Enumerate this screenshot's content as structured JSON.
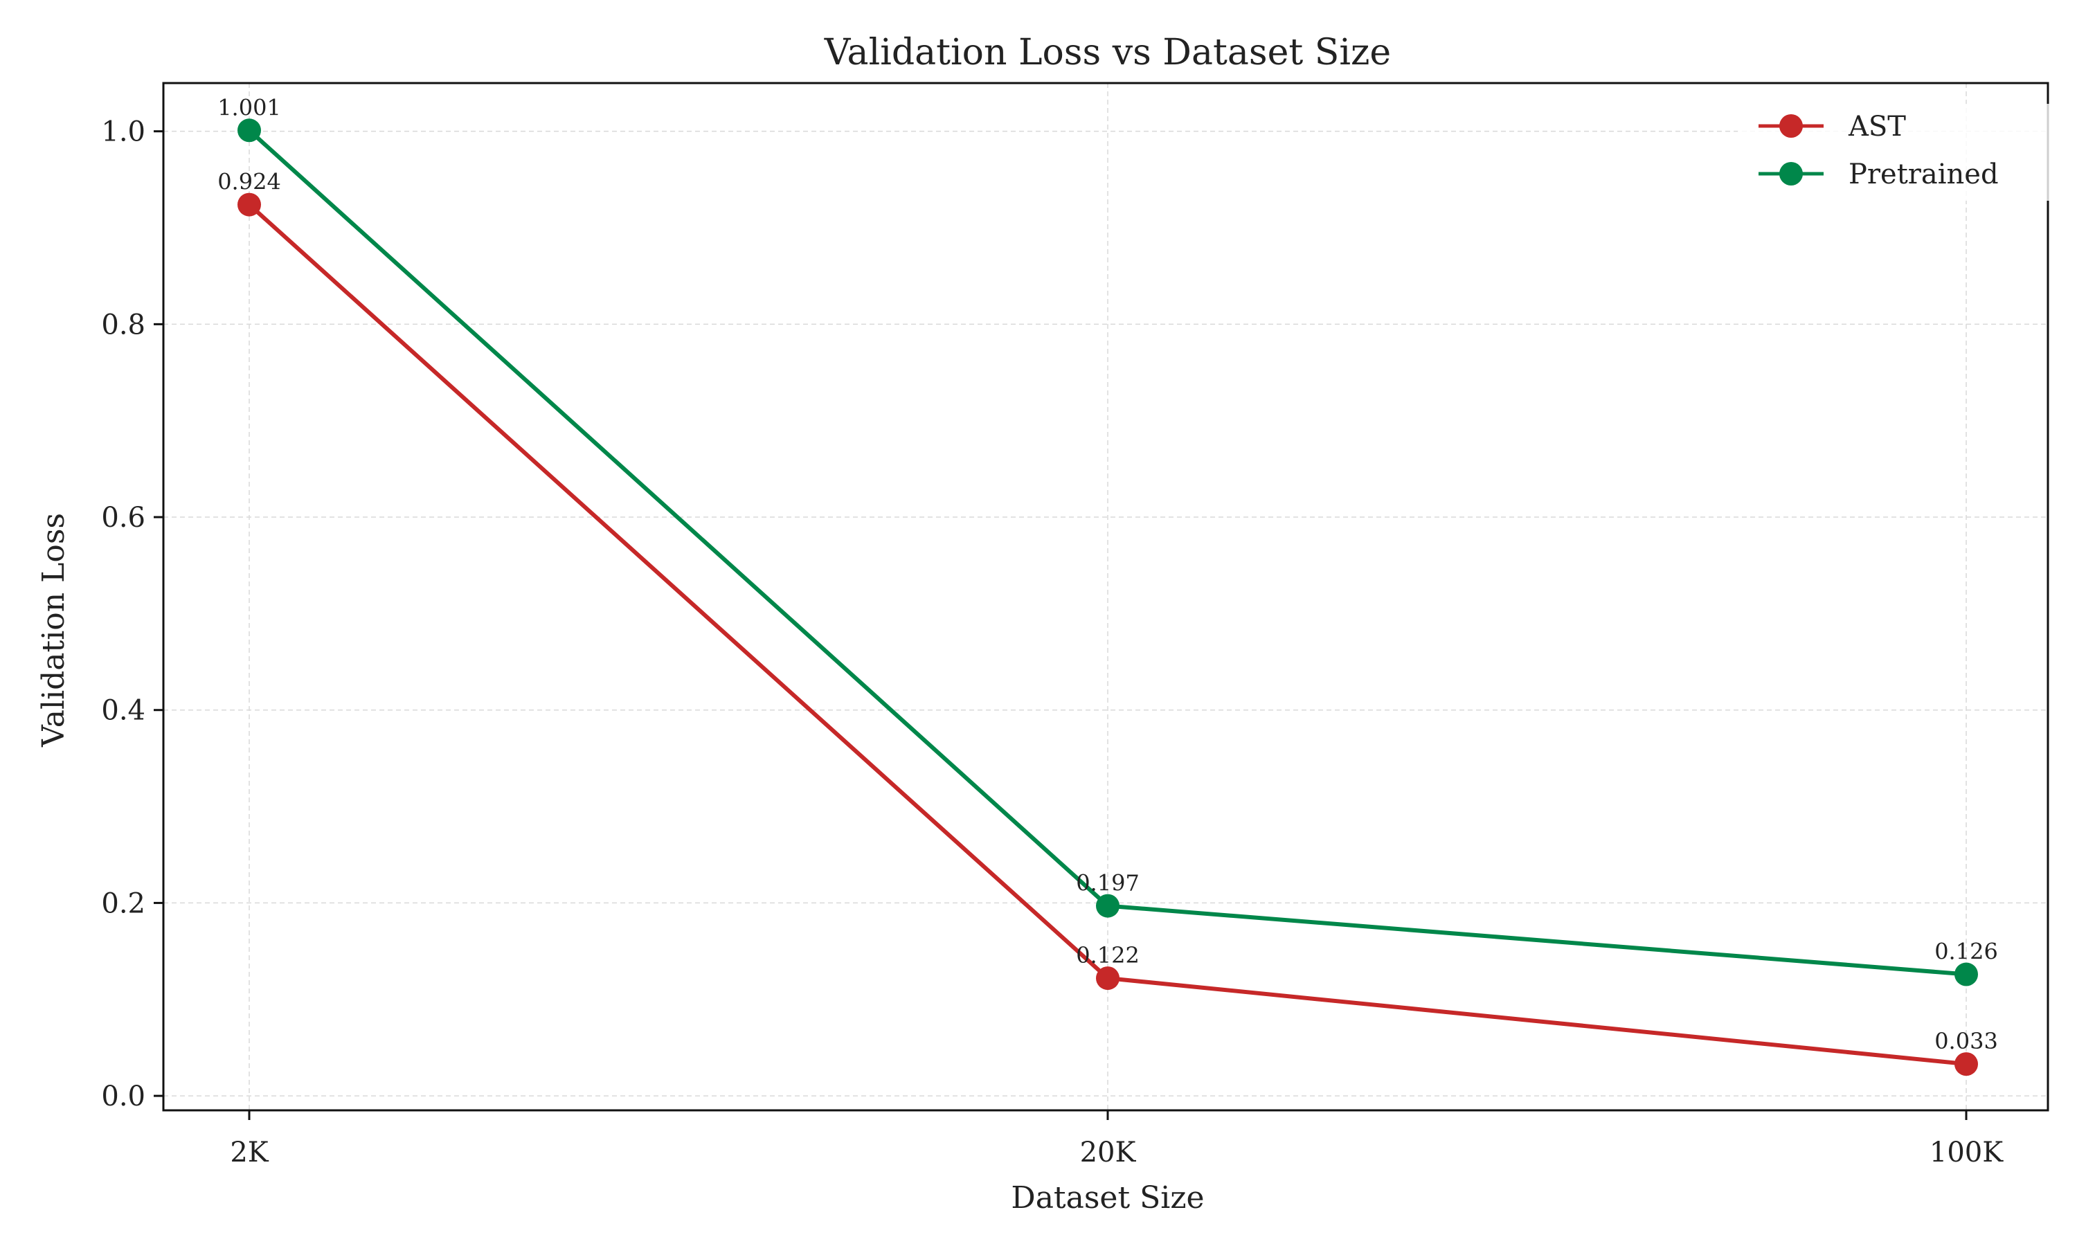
{
  "chart_data": {
    "type": "line",
    "title": "Validation Loss vs Dataset Size",
    "xlabel": "Dataset Size",
    "ylabel": "Validation Loss",
    "categories": [
      "2K",
      "20K",
      "100K"
    ],
    "ylim": [
      -0.015,
      1.05
    ],
    "yticks": [
      0.0,
      0.2,
      0.4,
      0.6,
      0.8,
      1.0
    ],
    "ytick_labels": [
      "0.0",
      "0.2",
      "0.4",
      "0.6",
      "0.8",
      "1.0"
    ],
    "grid": true,
    "legend_position": "top-right",
    "series": [
      {
        "name": "AST",
        "color": "#c62828",
        "values": [
          0.924,
          0.122,
          0.033
        ],
        "labels": [
          "0.924",
          "0.122",
          "0.033"
        ]
      },
      {
        "name": "Pretrained",
        "color": "#00874a",
        "values": [
          1.001,
          0.197,
          0.126
        ],
        "labels": [
          "1.001",
          "0.197",
          "0.126"
        ]
      }
    ]
  }
}
